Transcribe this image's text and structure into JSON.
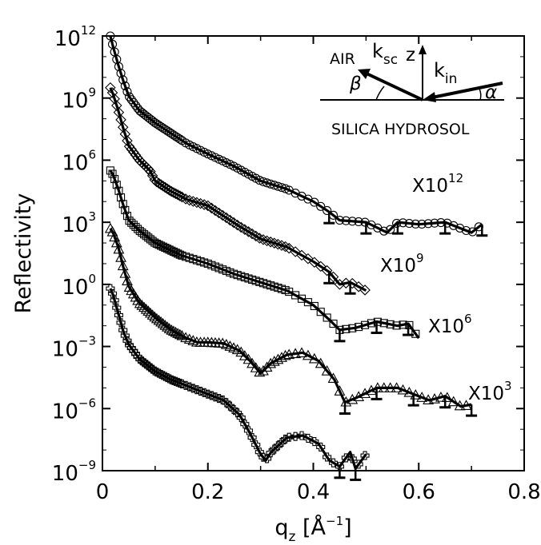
{
  "chart_data": {
    "type": "line",
    "title": "",
    "xlabel": "q",
    "xlabel_subscript": "z",
    "xlabel_unit_open": "[Å",
    "xlabel_unit_sup": "−1",
    "xlabel_unit_close": "]",
    "ylabel": "Reflectivity",
    "xlim": [
      0,
      0.8
    ],
    "ylim_log10": [
      -9,
      12
    ],
    "yscale": "log",
    "grid": false,
    "x_ticks": [
      "0",
      "0.2",
      "0.4",
      "0.6",
      "0.8"
    ],
    "y_ticks": [
      {
        "base": "10",
        "exp": "12"
      },
      {
        "base": "10",
        "exp": "9"
      },
      {
        "base": "10",
        "exp": "6"
      },
      {
        "base": "10",
        "exp": "3"
      },
      {
        "base": "10",
        "exp": "0"
      },
      {
        "base": "10",
        "exp": "−3"
      },
      {
        "base": "10",
        "exp": "−6"
      },
      {
        "base": "10",
        "exp": "−9"
      }
    ],
    "series": [
      {
        "marker": "cross",
        "offset_label": "",
        "fit": [
          [
            0.015,
            -0.2
          ],
          [
            0.02,
            -0.5
          ],
          [
            0.03,
            -1.4
          ],
          [
            0.04,
            -2.3
          ],
          [
            0.05,
            -2.9
          ],
          [
            0.07,
            -3.6
          ],
          [
            0.1,
            -4.2
          ],
          [
            0.13,
            -4.6
          ],
          [
            0.16,
            -4.9
          ],
          [
            0.2,
            -5.3
          ],
          [
            0.23,
            -5.6
          ],
          [
            0.26,
            -6.3
          ],
          [
            0.28,
            -7.2
          ],
          [
            0.3,
            -8.2
          ],
          [
            0.31,
            -8.5
          ],
          [
            0.32,
            -8.1
          ],
          [
            0.35,
            -7.4
          ],
          [
            0.38,
            -7.3
          ],
          [
            0.41,
            -7.7
          ],
          [
            0.43,
            -8.5
          ],
          [
            0.45,
            -8.8
          ],
          [
            0.47,
            -8.1
          ],
          [
            0.48,
            -8.9
          ],
          [
            0.5,
            -8.2
          ]
        ]
      },
      {
        "marker": "triangle",
        "offset_label": "X10",
        "offset_exp": "3",
        "fit": [
          [
            0.015,
            2.7
          ],
          [
            0.02,
            2.5
          ],
          [
            0.03,
            1.8
          ],
          [
            0.04,
            0.8
          ],
          [
            0.05,
            -0.1
          ],
          [
            0.07,
            -0.9
          ],
          [
            0.1,
            -1.6
          ],
          [
            0.13,
            -2.2
          ],
          [
            0.16,
            -2.6
          ],
          [
            0.18,
            -2.8
          ],
          [
            0.2,
            -2.8
          ],
          [
            0.23,
            -2.85
          ],
          [
            0.26,
            -3.2
          ],
          [
            0.28,
            -3.7
          ],
          [
            0.3,
            -4.3
          ],
          [
            0.32,
            -3.8
          ],
          [
            0.35,
            -3.4
          ],
          [
            0.38,
            -3.3
          ],
          [
            0.41,
            -3.7
          ],
          [
            0.44,
            -4.6
          ],
          [
            0.46,
            -5.7
          ],
          [
            0.48,
            -5.5
          ],
          [
            0.52,
            -5.0
          ],
          [
            0.56,
            -5.0
          ],
          [
            0.59,
            -5.3
          ],
          [
            0.62,
            -5.6
          ],
          [
            0.65,
            -5.4
          ],
          [
            0.68,
            -5.9
          ],
          [
            0.7,
            -5.8
          ]
        ]
      },
      {
        "marker": "square",
        "offset_label": "X10",
        "offset_exp": "6",
        "fit": [
          [
            0.015,
            5.5
          ],
          [
            0.02,
            5.3
          ],
          [
            0.03,
            4.6
          ],
          [
            0.04,
            3.8
          ],
          [
            0.05,
            3.1
          ],
          [
            0.07,
            2.6
          ],
          [
            0.1,
            2.0
          ],
          [
            0.15,
            1.4
          ],
          [
            0.2,
            1.0
          ],
          [
            0.25,
            0.5
          ],
          [
            0.3,
            0.1
          ],
          [
            0.35,
            -0.3
          ],
          [
            0.4,
            -1.0
          ],
          [
            0.43,
            -1.7
          ],
          [
            0.45,
            -2.2
          ],
          [
            0.48,
            -2.1
          ],
          [
            0.52,
            -1.8
          ],
          [
            0.56,
            -2.0
          ],
          [
            0.58,
            -1.9
          ],
          [
            0.6,
            -2.6
          ]
        ]
      },
      {
        "marker": "diamond",
        "offset_label": "X10",
        "offset_exp": "9",
        "fit": [
          [
            0.015,
            9.5
          ],
          [
            0.02,
            9.2
          ],
          [
            0.03,
            8.4
          ],
          [
            0.04,
            7.5
          ],
          [
            0.05,
            6.7
          ],
          [
            0.07,
            6.0
          ],
          [
            0.09,
            5.5
          ],
          [
            0.1,
            5.0
          ],
          [
            0.13,
            4.5
          ],
          [
            0.16,
            4.1
          ],
          [
            0.2,
            3.8
          ],
          [
            0.23,
            3.3
          ],
          [
            0.26,
            2.8
          ],
          [
            0.3,
            2.2
          ],
          [
            0.35,
            1.8
          ],
          [
            0.4,
            1.1
          ],
          [
            0.43,
            0.6
          ],
          [
            0.45,
            0.0
          ],
          [
            0.47,
            0.1
          ],
          [
            0.5,
            -0.3
          ]
        ]
      },
      {
        "marker": "circle",
        "offset_label": "X10",
        "offset_exp": "12",
        "fit": [
          [
            0.015,
            12.0
          ],
          [
            0.02,
            11.5
          ],
          [
            0.03,
            10.6
          ],
          [
            0.04,
            9.8
          ],
          [
            0.05,
            9.1
          ],
          [
            0.07,
            8.4
          ],
          [
            0.1,
            7.8
          ],
          [
            0.13,
            7.3
          ],
          [
            0.16,
            6.8
          ],
          [
            0.2,
            6.3
          ],
          [
            0.25,
            5.7
          ],
          [
            0.3,
            5.0
          ],
          [
            0.35,
            4.6
          ],
          [
            0.4,
            4.0
          ],
          [
            0.43,
            3.5
          ],
          [
            0.45,
            3.1
          ],
          [
            0.5,
            3.0
          ],
          [
            0.54,
            2.5
          ],
          [
            0.56,
            3.0
          ],
          [
            0.6,
            2.9
          ],
          [
            0.65,
            3.0
          ],
          [
            0.7,
            2.5
          ],
          [
            0.72,
            2.9
          ]
        ]
      }
    ],
    "inset": {
      "top_label": "AIR",
      "bottom_label": "SILICA HYDROSOL",
      "k_sc": "k",
      "k_sc_sub": "sc",
      "k_in": "k",
      "k_in_sub": "in",
      "z": "z",
      "beta": "β",
      "alpha": "α"
    }
  }
}
